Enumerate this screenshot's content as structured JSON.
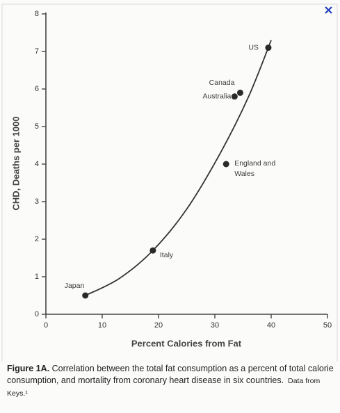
{
  "chart_data": {
    "type": "scatter",
    "x_label": "Percent Calories from Fat",
    "y_label": "CHD, Deaths per 1000",
    "point_labels": [
      "Japan",
      "Italy",
      "England and Wales",
      "Australia",
      "Canada",
      "US"
    ],
    "x": [
      7,
      19,
      32,
      33.5,
      34.5,
      39.5
    ],
    "values": [
      0.5,
      1.7,
      4.0,
      5.8,
      5.9,
      7.1
    ],
    "color": "#2a2a2a",
    "fit_curve": {
      "x": [
        7,
        13,
        19,
        25,
        31,
        36,
        40
      ],
      "values": [
        0.5,
        0.95,
        1.7,
        2.8,
        4.3,
        5.8,
        7.3
      ]
    },
    "xlim": [
      0,
      50
    ],
    "xticks": [
      0,
      10,
      20,
      30,
      40,
      50
    ],
    "ylim": [
      0,
      8
    ],
    "yticks": [
      0,
      1,
      2,
      3,
      4,
      5,
      6,
      7,
      8
    ],
    "grid": false
  },
  "caption": {
    "figure": "Figure 1A.",
    "text": "Correlation between the total fat consumption as a percent of total calorie consumption, and mortality from coronary heart disease in six countries.",
    "source": "Data from Keys.¹"
  }
}
